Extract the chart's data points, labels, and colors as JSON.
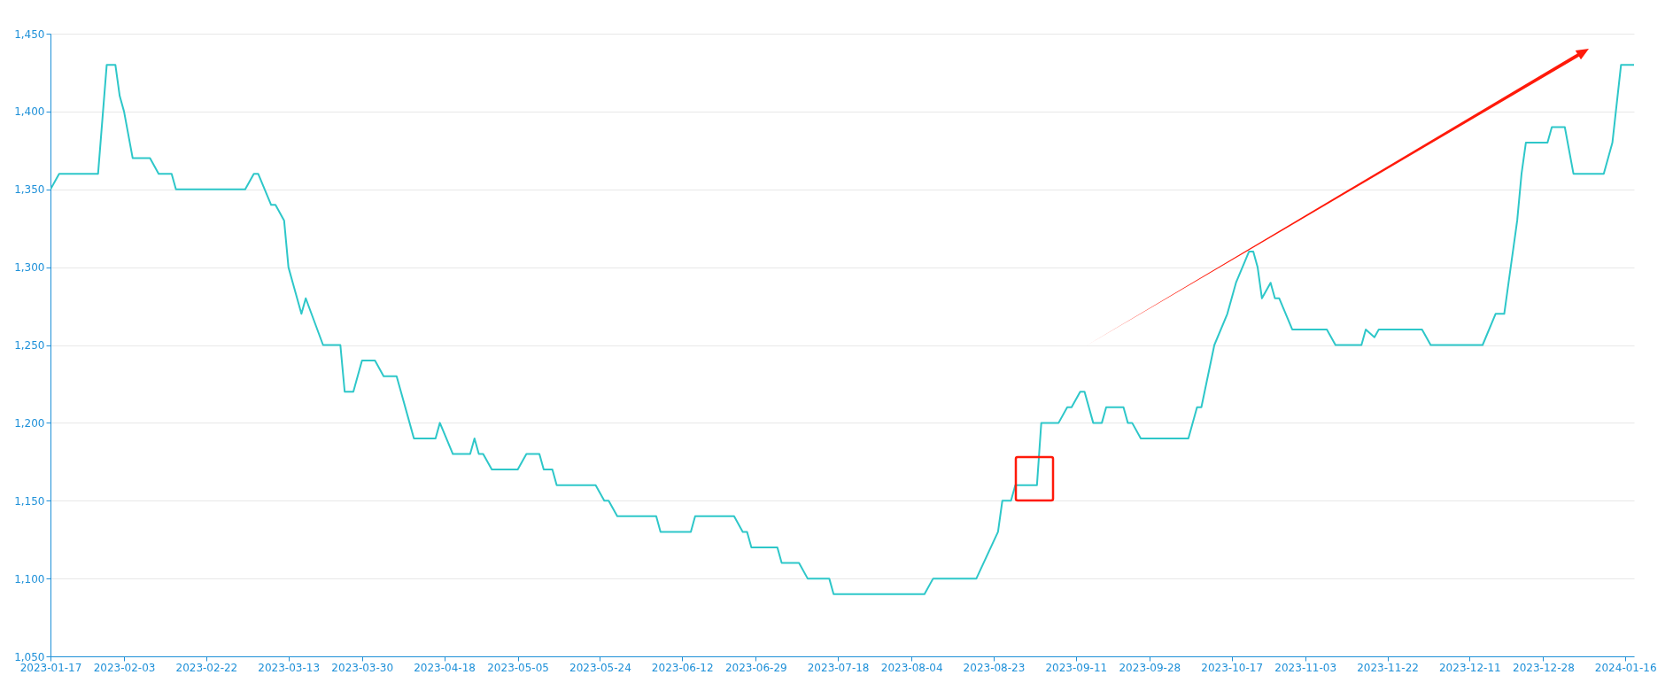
{
  "chart_data": {
    "type": "line",
    "xlim": [
      "2023-01-17",
      "2024-01-18"
    ],
    "xticks": [
      "2023-01-17",
      "2023-02-03",
      "2023-02-22",
      "2023-03-13",
      "2023-03-30",
      "2023-04-18",
      "2023-05-05",
      "2023-05-24",
      "2023-06-12",
      "2023-06-29",
      "2023-07-18",
      "2023-08-04",
      "2023-08-23",
      "2023-09-11",
      "2023-09-28",
      "2023-10-17",
      "2023-11-03",
      "2023-11-22",
      "2023-12-11",
      "2023-12-28",
      "2024-01-16"
    ],
    "ylim": [
      1050,
      1450
    ],
    "yticks": [
      {
        "value": 1050,
        "label": "1,050"
      },
      {
        "value": 1100,
        "label": "1,100"
      },
      {
        "value": 1150,
        "label": "1,150"
      },
      {
        "value": 1200,
        "label": "1,200"
      },
      {
        "value": 1250,
        "label": "1,250"
      },
      {
        "value": 1300,
        "label": "1,300"
      },
      {
        "value": 1350,
        "label": "1,350"
      },
      {
        "value": 1400,
        "label": "1,400"
      },
      {
        "value": 1450,
        "label": "1,450"
      }
    ],
    "grid": "y",
    "marker": "none",
    "line_style": "solid",
    "series": [
      {
        "color": "#2ec7c9",
        "x": [
          "2023-01-17",
          "2023-01-19",
          "2023-01-28",
          "2023-01-30",
          "2023-02-01",
          "2023-02-02",
          "2023-02-03",
          "2023-02-05",
          "2023-02-09",
          "2023-02-11",
          "2023-02-14",
          "2023-02-15",
          "2023-03-03",
          "2023-03-05",
          "2023-03-06",
          "2023-03-09",
          "2023-03-10",
          "2023-03-12",
          "2023-03-13",
          "2023-03-14",
          "2023-03-16",
          "2023-03-17",
          "2023-03-21",
          "2023-03-25",
          "2023-03-26",
          "2023-03-28",
          "2023-03-30",
          "2023-04-02",
          "2023-04-04",
          "2023-04-07",
          "2023-04-08",
          "2023-04-10",
          "2023-04-11",
          "2023-04-16",
          "2023-04-17",
          "2023-04-20",
          "2023-04-24",
          "2023-04-25",
          "2023-04-26",
          "2023-04-27",
          "2023-04-29",
          "2023-05-05",
          "2023-05-07",
          "2023-05-10",
          "2023-05-11",
          "2023-05-13",
          "2023-05-14",
          "2023-05-23",
          "2023-05-25",
          "2023-05-26",
          "2023-05-28",
          "2023-06-06",
          "2023-06-07",
          "2023-06-14",
          "2023-06-15",
          "2023-06-24",
          "2023-06-26",
          "2023-06-27",
          "2023-06-28",
          "2023-07-04",
          "2023-07-05",
          "2023-07-09",
          "2023-07-11",
          "2023-07-15",
          "2023-07-16",
          "2023-07-17",
          "2023-08-07",
          "2023-08-09",
          "2023-08-19",
          "2023-08-24",
          "2023-08-25",
          "2023-08-27",
          "2023-08-28",
          "2023-09-02",
          "2023-09-03",
          "2023-09-07",
          "2023-09-09",
          "2023-09-10",
          "2023-09-12",
          "2023-09-13",
          "2023-09-15",
          "2023-09-17",
          "2023-09-18",
          "2023-09-22",
          "2023-09-23",
          "2023-09-24",
          "2023-09-26",
          "2023-10-07",
          "2023-10-09",
          "2023-10-10",
          "2023-10-13",
          "2023-10-16",
          "2023-10-18",
          "2023-10-21",
          "2023-10-22",
          "2023-10-23",
          "2023-10-24",
          "2023-10-26",
          "2023-10-27",
          "2023-10-28",
          "2023-10-31",
          "2023-11-08",
          "2023-11-10",
          "2023-11-16",
          "2023-11-17",
          "2023-11-19",
          "2023-11-20",
          "2023-11-30",
          "2023-12-02",
          "2023-12-14",
          "2023-12-17",
          "2023-12-19",
          "2023-12-20",
          "2023-12-22",
          "2023-12-23",
          "2023-12-24",
          "2023-12-29",
          "2023-12-30",
          "2024-01-02",
          "2024-01-04",
          "2024-01-11",
          "2024-01-13",
          "2024-01-15",
          "2024-01-18"
        ],
        "values": [
          1350,
          1360,
          1360,
          1430,
          1430,
          1410,
          1400,
          1370,
          1370,
          1360,
          1360,
          1350,
          1350,
          1360,
          1360,
          1340,
          1340,
          1330,
          1300,
          1290,
          1270,
          1280,
          1250,
          1250,
          1220,
          1220,
          1240,
          1240,
          1230,
          1230,
          1220,
          1200,
          1190,
          1190,
          1200,
          1180,
          1180,
          1190,
          1180,
          1180,
          1170,
          1170,
          1180,
          1180,
          1170,
          1170,
          1160,
          1160,
          1150,
          1150,
          1140,
          1140,
          1130,
          1130,
          1140,
          1140,
          1130,
          1130,
          1120,
          1120,
          1110,
          1110,
          1100,
          1100,
          1100,
          1090,
          1090,
          1100,
          1100,
          1130,
          1150,
          1150,
          1160,
          1160,
          1200,
          1200,
          1210,
          1210,
          1220,
          1220,
          1200,
          1200,
          1210,
          1210,
          1200,
          1200,
          1190,
          1190,
          1210,
          1210,
          1250,
          1270,
          1290,
          1310,
          1310,
          1300,
          1280,
          1290,
          1280,
          1280,
          1260,
          1260,
          1250,
          1250,
          1260,
          1255,
          1260,
          1260,
          1250,
          1250,
          1270,
          1270,
          1290,
          1330,
          1360,
          1380,
          1380,
          1390,
          1390,
          1360,
          1360,
          1380,
          1430,
          1430
        ]
      }
    ]
  }
}
